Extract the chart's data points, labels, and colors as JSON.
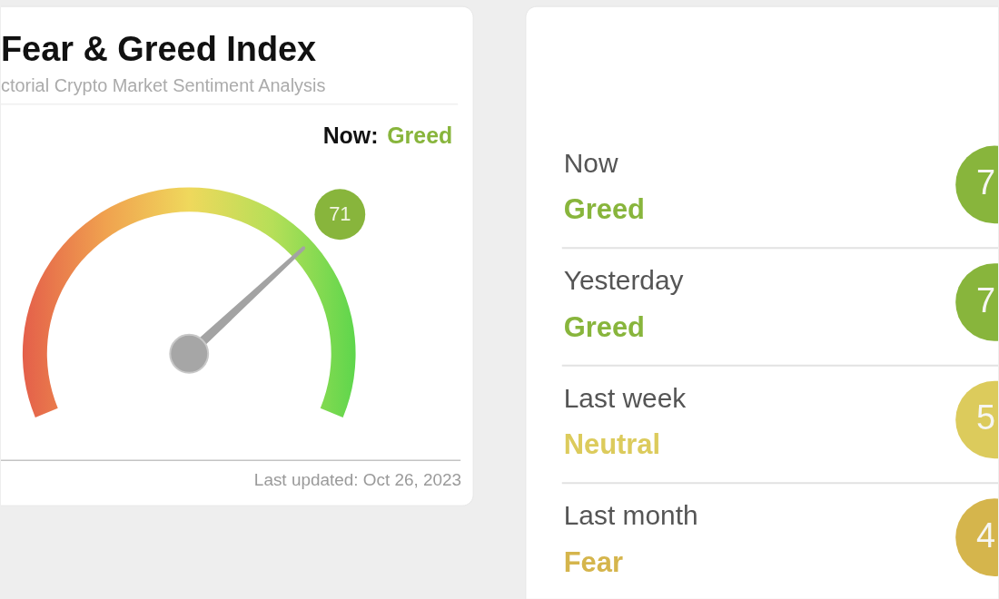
{
  "chart_data": [
    {
      "type": "other",
      "title": "Fear & Greed Index",
      "subtitle": "ctorial Crypto Market Sentiment Analysis",
      "values": [
        71
      ],
      "data_labels": true,
      "color": "#88b53c",
      "annotations": [
        "Now:",
        "Greed",
        "Last updated: Oct 26, 2023"
      ]
    },
    {
      "type": "other",
      "categories": [
        "Now",
        "Yesterday",
        "Last week",
        "Last month"
      ],
      "annotations": [
        "Greed",
        "Greed",
        "Neutral",
        "Fear"
      ],
      "value_labels": [
        "7",
        "7",
        "5",
        "4"
      ],
      "colors": [
        "#88b53c",
        "#88b53c",
        "#dccb5c",
        "#d5b54c"
      ]
    }
  ]
}
